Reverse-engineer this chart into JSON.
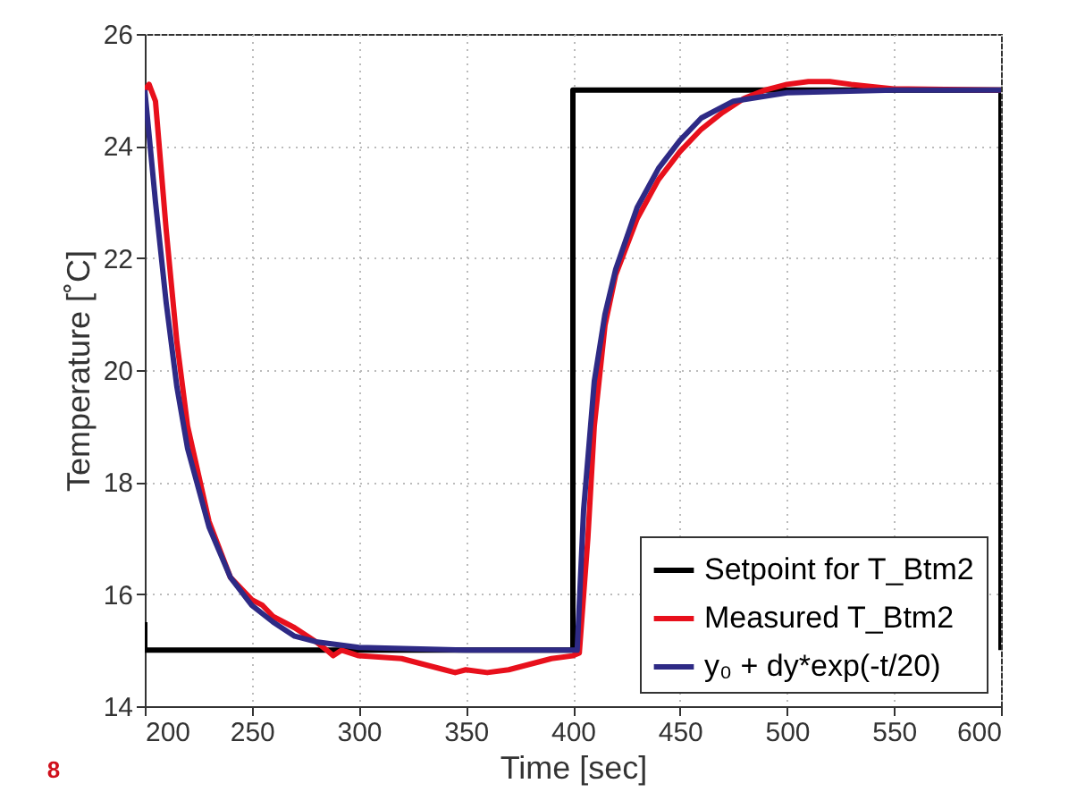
{
  "chart_data": {
    "type": "line",
    "xlabel": "Time [sec]",
    "ylabel": "Temperature [˚C]",
    "xlim": [
      200,
      600
    ],
    "xticks": [
      200,
      250,
      300,
      350,
      400,
      450,
      500,
      550,
      600
    ],
    "ylim": [
      14,
      26
    ],
    "yticks": [
      14,
      16,
      18,
      20,
      22,
      24,
      26
    ],
    "grid": true,
    "legend": "bottom right",
    "line_style": "solid",
    "marker": "none",
    "annotations": [
      "8"
    ],
    "series": [
      {
        "name": "Setpoint for T_Btm2",
        "color": "#000000",
        "x": [
          200,
          200,
          400,
          400,
          600,
          600
        ],
        "values": [
          15.5,
          15,
          15,
          25,
          25,
          15
        ]
      },
      {
        "name": "Measured T_Btm2",
        "color": "#e8101c",
        "x": [
          200,
          202,
          205,
          210,
          215,
          220,
          230,
          240,
          250,
          255,
          260,
          270,
          280,
          285,
          288,
          292,
          300,
          320,
          330,
          340,
          345,
          350,
          360,
          370,
          380,
          390,
          400,
          403,
          407,
          410,
          415,
          420,
          430,
          440,
          450,
          460,
          470,
          480,
          490,
          500,
          510,
          520,
          530,
          550,
          600
        ],
        "values": [
          25,
          25.1,
          24.8,
          22.5,
          20.5,
          19.0,
          17.3,
          16.3,
          15.9,
          15.8,
          15.6,
          15.4,
          15.15,
          15.0,
          14.9,
          15.0,
          14.9,
          14.85,
          14.75,
          14.65,
          14.6,
          14.65,
          14.6,
          14.65,
          14.75,
          14.85,
          14.9,
          14.95,
          17,
          19,
          20.8,
          21.7,
          22.7,
          23.4,
          23.9,
          24.3,
          24.6,
          24.85,
          25.0,
          25.1,
          25.15,
          25.15,
          25.1,
          25.02,
          25
        ]
      },
      {
        "name": "y₀ + dy*exp(-t/20)",
        "color": "#2e2a85",
        "x": [
          200,
          205,
          210,
          215,
          220,
          230,
          240,
          250,
          260,
          270,
          280,
          300,
          350,
          402,
          405,
          410,
          415,
          420,
          430,
          440,
          450,
          460,
          475,
          500,
          550,
          600
        ],
        "values": [
          25,
          23.0,
          21.2,
          19.7,
          18.6,
          17.2,
          16.3,
          15.8,
          15.5,
          15.25,
          15.15,
          15.05,
          15,
          15,
          17.5,
          19.8,
          21.0,
          21.8,
          22.9,
          23.6,
          24.1,
          24.5,
          24.8,
          24.95,
          25,
          25
        ]
      }
    ]
  }
}
